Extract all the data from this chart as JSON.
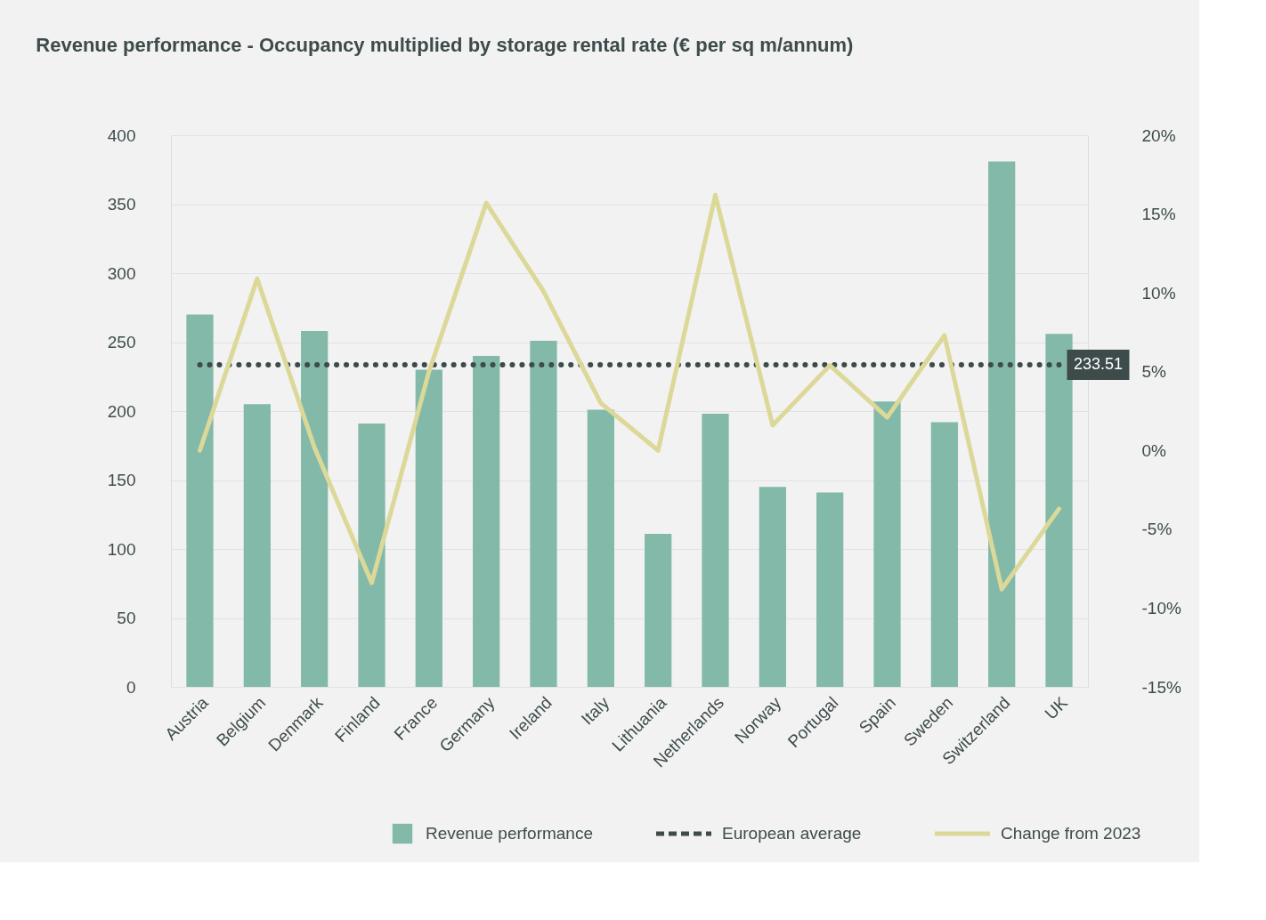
{
  "chart_data": {
    "type": "bar",
    "title": "Revenue performance - Occupancy multiplied by storage rental rate (€ per sq m/annum)",
    "categories": [
      "Austria",
      "Belgium",
      "Denmark",
      "Finland",
      "France",
      "Germany",
      "Ireland",
      "Italy",
      "Lithuania",
      "Netherlands",
      "Norway",
      "Portugal",
      "Spain",
      "Sweden",
      "Switzerland",
      "UK"
    ],
    "series": [
      {
        "name": "Revenue performance",
        "color": "#82b9a9",
        "values": [
          270,
          205,
          258,
          191,
          230,
          240,
          251,
          201,
          111,
          198,
          145,
          141,
          207,
          192,
          381,
          256
        ]
      },
      {
        "name": "European average",
        "type": "line",
        "line_style": "dotted",
        "color": "#3e4b4b",
        "values": [
          233.51,
          233.51,
          233.51,
          233.51,
          233.51,
          233.51,
          233.51,
          233.51,
          233.51,
          233.51,
          233.51,
          233.51,
          233.51,
          233.51,
          233.51,
          233.51
        ],
        "value_labels": [
          null,
          null,
          null,
          null,
          null,
          null,
          null,
          null,
          null,
          null,
          null,
          null,
          null,
          null,
          null,
          "233.51"
        ]
      },
      {
        "name": "Change from 2023",
        "type": "line",
        "axis": "y2",
        "color": "#dcd898",
        "values": [
          0,
          10.9,
          0.2,
          -8.4,
          5.0,
          15.7,
          10.1,
          3.0,
          0,
          16.2,
          1.6,
          5.4,
          2.1,
          7.3,
          -8.8,
          -3.7
        ]
      }
    ],
    "ylim": [
      0,
      400
    ],
    "yticks": [
      0,
      50,
      100,
      150,
      200,
      250,
      300,
      350,
      400
    ],
    "y2lim": [
      -15,
      20
    ],
    "y2ticks": [
      {
        "value": -15,
        "label": "-15%"
      },
      {
        "value": -10,
        "label": "-10%"
      },
      {
        "value": -5,
        "label": "-5%"
      },
      {
        "value": 0,
        "label": "0%"
      },
      {
        "value": 5,
        "label": "5%"
      },
      {
        "value": 10,
        "label": "10%"
      },
      {
        "value": 15,
        "label": "15%"
      },
      {
        "value": 20,
        "label": "20%"
      }
    ],
    "grid": "y",
    "legend": "bottom"
  }
}
